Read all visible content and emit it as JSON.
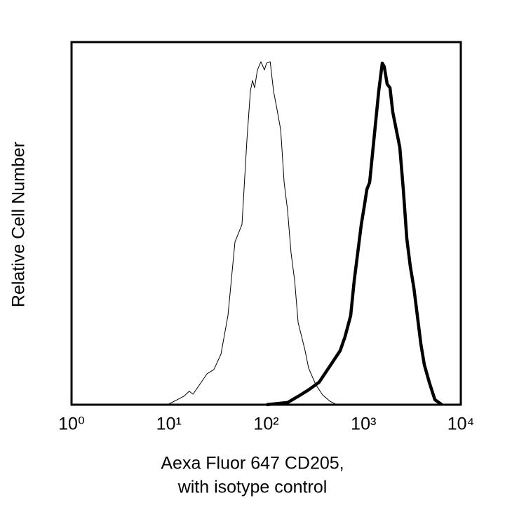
{
  "chart_data": {
    "type": "line",
    "xscale": "log",
    "ylabel": "Relative Cell Number",
    "xlabel": [
      "Aexa Fluor 647 CD205,",
      "with isotype control"
    ],
    "xlim": [
      1,
      10000
    ],
    "ylim": [
      0,
      100
    ],
    "xticks": [
      {
        "value": 1,
        "label": "10⁰"
      },
      {
        "value": 10,
        "label": "10¹"
      },
      {
        "value": 100,
        "label": "10²"
      },
      {
        "value": 1000,
        "label": "10³"
      },
      {
        "value": 10000,
        "label": "10⁴"
      }
    ],
    "series": [
      {
        "color": "#000000",
        "width": 1,
        "x": [
          5.1,
          10,
          14.2,
          16.2,
          17.7,
          20.8,
          24.6,
          29.0,
          34.3,
          40.5,
          47.8,
          56.4,
          63.4,
          68.8,
          72.3,
          76.0,
          81.3,
          88.3,
          95.9,
          101,
          110,
          119,
          129,
          141,
          153,
          166,
          180,
          196,
          213,
          231,
          251,
          273,
          322,
          380,
          449,
          530
        ],
        "values": [
          0,
          0.2,
          2.3,
          3.7,
          2.9,
          5.6,
          8.5,
          9.7,
          13.9,
          24.6,
          44.9,
          49.7,
          72.9,
          86.5,
          89.4,
          87.4,
          92.3,
          94.6,
          92.3,
          94.2,
          94.6,
          86.5,
          81.6,
          75.8,
          61.3,
          53.6,
          42.0,
          34.2,
          22.6,
          18.8,
          14.9,
          10.1,
          5.6,
          2.7,
          1.0,
          0
        ]
      },
      {
        "color": "#000000",
        "width": 4.5,
        "x": [
          101,
          166,
          213,
          273,
          350,
          413,
          488,
          576,
          647,
          739,
          803,
          873,
          949,
          1030,
          1084,
          1157,
          1216,
          1321,
          1435,
          1560,
          1637,
          1750,
          1871,
          2000,
          2173,
          2361,
          2565,
          2787,
          3027,
          3289,
          3573,
          3882,
          4218,
          4742,
          5412,
          6383
        ],
        "values": [
          0,
          0.6,
          2.3,
          4.1,
          6.2,
          9.1,
          12.0,
          14.9,
          18.8,
          24.6,
          34.2,
          42.0,
          49.7,
          55.5,
          59.4,
          61.3,
          67.1,
          76.8,
          86.5,
          94.2,
          93.2,
          88.4,
          87.4,
          80.7,
          75.8,
          71.0,
          59.4,
          45.8,
          38.1,
          32.3,
          24.6,
          16.8,
          11.0,
          6.2,
          1.4,
          0
        ]
      }
    ]
  }
}
